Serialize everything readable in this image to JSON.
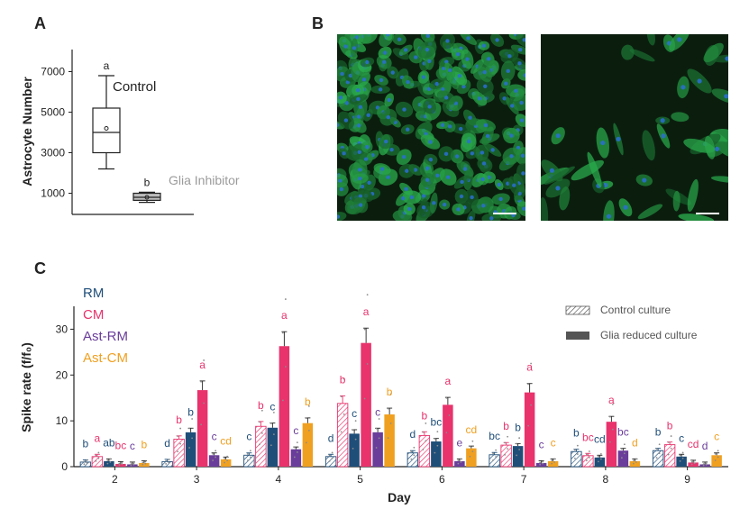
{
  "panels": {
    "a": "A",
    "b": "B",
    "c": "C"
  },
  "colors": {
    "rm": "#1f4e79",
    "cm": "#e8336d",
    "ast_rm": "#6a3d9a",
    "ast_cm": "#f0a020",
    "gray_text": "#9b9b9b",
    "box_gray": "#bdbdbd"
  },
  "chart_data": [
    {
      "type": "box",
      "ylabel": "Astrocyte Number",
      "yticks": [
        1000,
        3000,
        5000,
        7000
      ],
      "ylim": [
        0,
        7600
      ],
      "groups": [
        {
          "name": "Control",
          "min": 2200,
          "q1": 3000,
          "median": 4000,
          "q3": 5200,
          "max": 6800,
          "mean": 4200,
          "letter": "a"
        },
        {
          "name": "Glia Inhibitor",
          "min": 550,
          "q1": 650,
          "median": 800,
          "q3": 1000,
          "max": 1050,
          "mean": 800,
          "letter": "b"
        }
      ]
    },
    {
      "type": "bar",
      "xlabel": "Day",
      "ylabel": "Spike rate (f/f₀)",
      "ylim": [
        0,
        35
      ],
      "yticks": [
        0,
        10,
        20,
        30
      ],
      "categories": [
        "2",
        "3",
        "4",
        "5",
        "6",
        "7",
        "8",
        "9"
      ],
      "legend_groups": [
        "RM",
        "CM",
        "Ast-RM",
        "Ast-CM"
      ],
      "legend_cultures": [
        "Control culture",
        "Glia reduced culture"
      ],
      "series": [
        {
          "name": "RM",
          "culture": "Control culture",
          "color_key": "rm",
          "values": [
            1.0,
            1.1,
            2.5,
            2.2,
            3.0,
            2.6,
            3.3,
            3.5
          ],
          "letters": [
            "b",
            "d",
            "c",
            "d",
            "d",
            "bc",
            "b",
            "b"
          ]
        },
        {
          "name": "CM",
          "culture": "Control culture",
          "color_key": "cm",
          "values": [
            2.2,
            6.0,
            8.8,
            13.8,
            6.8,
            4.7,
            2.4,
            4.8
          ],
          "letters": [
            "a",
            "b",
            "b",
            "b",
            "b",
            "b",
            "bc",
            "b"
          ]
        },
        {
          "name": "RM",
          "culture": "Glia reduced culture",
          "color_key": "rm",
          "values": [
            1.2,
            7.5,
            8.5,
            7.2,
            5.5,
            4.5,
            2.0,
            2.2
          ],
          "letters": [
            "ab",
            "b",
            "c",
            "c",
            "bc",
            "b",
            "cd",
            "c"
          ]
        },
        {
          "name": "CM",
          "culture": "Glia reduced culture",
          "color_key": "cm",
          "values": [
            0.6,
            16.7,
            26.3,
            27.0,
            13.5,
            16.2,
            9.8,
            0.9
          ],
          "letters": [
            "bc",
            "a",
            "a",
            "a",
            "a",
            "a",
            "a",
            "cd"
          ]
        },
        {
          "name": "Ast-RM",
          "culture": "Glia reduced culture",
          "color_key": "ast_rm",
          "values": [
            0.5,
            2.5,
            3.8,
            7.5,
            1.2,
            0.8,
            3.5,
            0.5
          ],
          "letters": [
            "c",
            "c",
            "c",
            "c",
            "e",
            "c",
            "bc",
            "d"
          ]
        },
        {
          "name": "Ast-CM",
          "culture": "Glia reduced culture",
          "color_key": "ast_cm",
          "values": [
            0.8,
            1.6,
            9.5,
            11.4,
            4.0,
            1.2,
            1.2,
            2.5
          ],
          "letters": [
            "b",
            "cd",
            "b",
            "b",
            "cd",
            "c",
            "d",
            "c"
          ]
        }
      ]
    }
  ]
}
